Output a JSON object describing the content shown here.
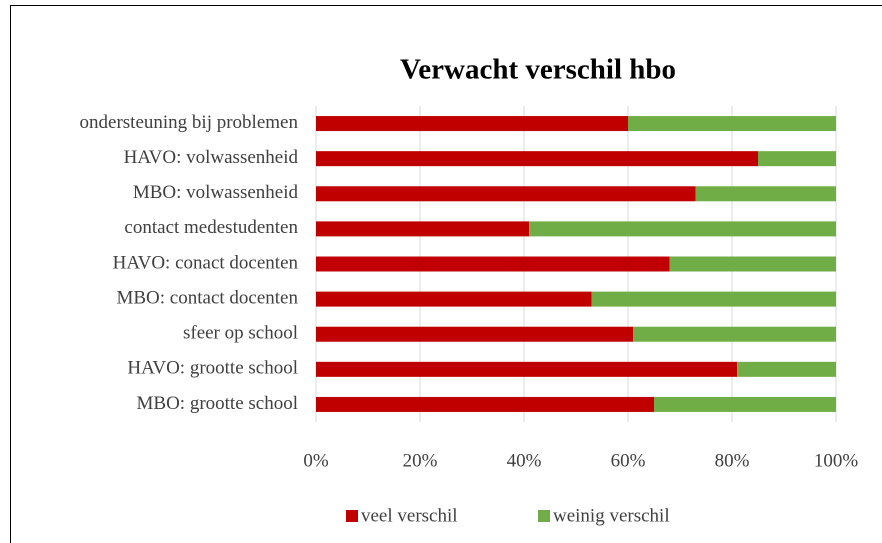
{
  "chart_data": {
    "type": "stacked_bar_horizontal",
    "title": "Verwacht verschil hbo",
    "categories": [
      "ondersteuning bij problemen",
      "HAVO: volwassenheid",
      "MBO: volwassenheid",
      "contact medestudenten",
      "HAVO: conact docenten",
      "MBO: contact docenten",
      "sfeer op school",
      "HAVO: grootte school",
      "MBO: grootte school"
    ],
    "series": [
      {
        "name": "veel verschil",
        "color": "#c00000",
        "values": [
          60,
          85,
          73,
          41,
          68,
          53,
          61,
          81,
          65
        ]
      },
      {
        "name": "weinig verschil",
        "color": "#70ad47",
        "values": [
          40,
          15,
          27,
          59,
          32,
          47,
          39,
          19,
          35
        ]
      }
    ],
    "xlim": [
      0,
      100
    ],
    "xticks": [
      {
        "value": 0,
        "label": "0%"
      },
      {
        "value": 20,
        "label": "20%"
      },
      {
        "value": 40,
        "label": "40%"
      },
      {
        "value": 60,
        "label": "60%"
      },
      {
        "value": 80,
        "label": "80%"
      },
      {
        "value": 100,
        "label": "100%"
      }
    ],
    "grid": true,
    "legend": "bottom"
  }
}
